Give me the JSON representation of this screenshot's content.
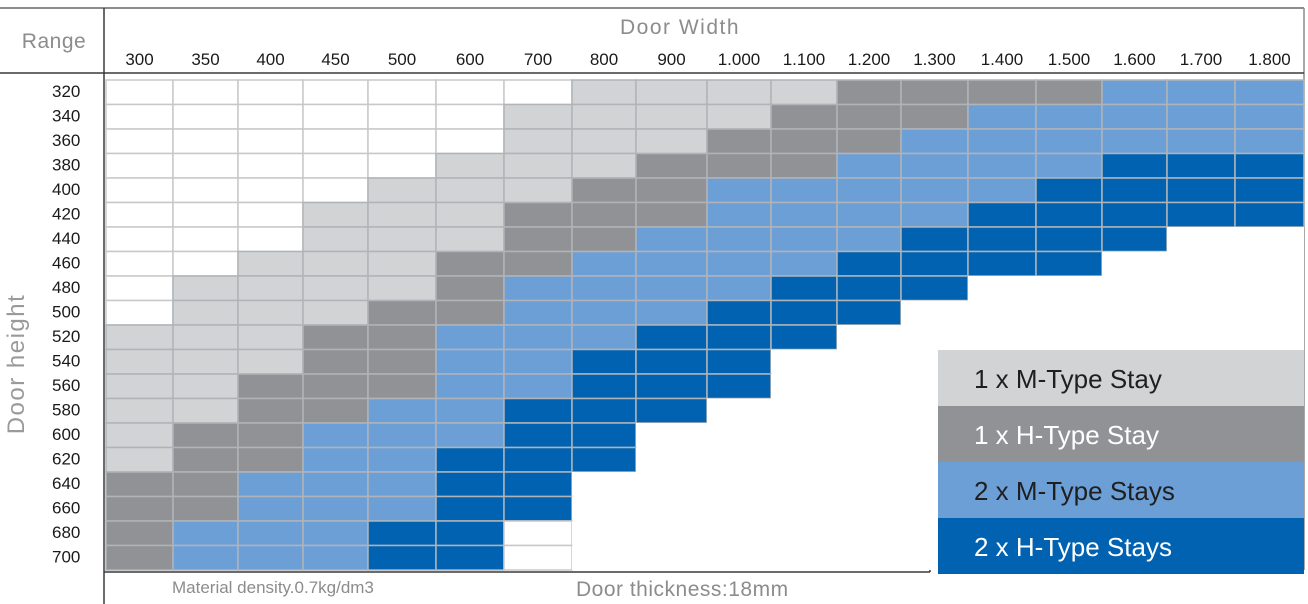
{
  "header": {
    "range_label": "Range",
    "x_title": "Door Width",
    "y_title": "Door height"
  },
  "footer": {
    "density": "Material density.0.7kg/dm3",
    "thickness": "Door  thickness:18mm"
  },
  "colors": {
    "frame": "#8c8c8c",
    "separator": "#b0b4b8",
    "empty": "#ffffff",
    "m1": "#d2d3d5",
    "h1": "#919295",
    "m2": "#6d9fd7",
    "h2": "#0062b1"
  },
  "legend": [
    {
      "key": "m1",
      "label": "1 x M-Type Stay",
      "text_color": "#1f1f1f"
    },
    {
      "key": "h1",
      "label": "1 x H-Type Stay",
      "text_color": "#ffffff"
    },
    {
      "key": "m2",
      "label": "2 x M-Type Stays",
      "text_color": "#1f1f1f"
    },
    {
      "key": "h2",
      "label": "2 x H-Type Stays",
      "text_color": "#ffffff"
    }
  ],
  "chart_data": {
    "type": "table",
    "title": "Door Width",
    "xlabel": "Door Width",
    "ylabel": "Door height",
    "columns": [
      "300",
      "350",
      "400",
      "450",
      "500",
      "600",
      "700",
      "800",
      "900",
      "1.000",
      "1.100",
      "1.200",
      "1.300",
      "1.400",
      "1.500",
      "1.600",
      "1.700",
      "1.800"
    ],
    "rows": [
      "320",
      "340",
      "360",
      "380",
      "400",
      "420",
      "440",
      "460",
      "480",
      "500",
      "520",
      "540",
      "560",
      "580",
      "600",
      "620",
      "640",
      "660",
      "680",
      "700"
    ],
    "legend_codes": {
      "0": "none",
      "1": "1 x M-Type Stay",
      "2": "1 x H-Type Stay",
      "3": "2 x M-Type Stays",
      "4": "2 x H-Type Stays"
    },
    "cells": [
      [
        0,
        0,
        0,
        0,
        0,
        0,
        0,
        1,
        1,
        1,
        1,
        2,
        2,
        2,
        2,
        3,
        3,
        3
      ],
      [
        0,
        0,
        0,
        0,
        0,
        0,
        1,
        1,
        1,
        1,
        2,
        2,
        2,
        3,
        3,
        3,
        3,
        3
      ],
      [
        0,
        0,
        0,
        0,
        0,
        0,
        1,
        1,
        1,
        2,
        2,
        2,
        3,
        3,
        3,
        3,
        3,
        3
      ],
      [
        0,
        0,
        0,
        0,
        0,
        1,
        1,
        1,
        2,
        2,
        2,
        3,
        3,
        3,
        3,
        4,
        4,
        4
      ],
      [
        0,
        0,
        0,
        0,
        1,
        1,
        1,
        2,
        2,
        3,
        3,
        3,
        3,
        3,
        4,
        4,
        4,
        4
      ],
      [
        0,
        0,
        0,
        1,
        1,
        1,
        2,
        2,
        2,
        3,
        3,
        3,
        3,
        4,
        4,
        4,
        4,
        4
      ],
      [
        0,
        0,
        0,
        1,
        1,
        1,
        2,
        2,
        3,
        3,
        3,
        3,
        4,
        4,
        4,
        4,
        0,
        0
      ],
      [
        0,
        0,
        1,
        1,
        1,
        2,
        2,
        3,
        3,
        3,
        3,
        4,
        4,
        4,
        4,
        0,
        0,
        0
      ],
      [
        0,
        1,
        1,
        1,
        1,
        2,
        3,
        3,
        3,
        3,
        4,
        4,
        4,
        0,
        0,
        0,
        0,
        0
      ],
      [
        0,
        1,
        1,
        1,
        2,
        2,
        3,
        3,
        3,
        4,
        4,
        4,
        0,
        0,
        0,
        0,
        0,
        0
      ],
      [
        1,
        1,
        1,
        2,
        2,
        3,
        3,
        3,
        4,
        4,
        4,
        0,
        0,
        0,
        0,
        0,
        0,
        0
      ],
      [
        1,
        1,
        1,
        2,
        2,
        3,
        3,
        4,
        4,
        4,
        0,
        0,
        0,
        0,
        0,
        0,
        0,
        0
      ],
      [
        1,
        1,
        2,
        2,
        2,
        3,
        3,
        4,
        4,
        4,
        0,
        0,
        0,
        0,
        0,
        0,
        0,
        0
      ],
      [
        1,
        1,
        2,
        2,
        3,
        3,
        4,
        4,
        4,
        0,
        0,
        0,
        0,
        0,
        0,
        0,
        0,
        0
      ],
      [
        1,
        2,
        2,
        3,
        3,
        3,
        4,
        4,
        0,
        0,
        0,
        0,
        0,
        0,
        0,
        0,
        0,
        0
      ],
      [
        1,
        2,
        2,
        3,
        3,
        4,
        4,
        4,
        0,
        0,
        0,
        0,
        0,
        0,
        0,
        0,
        0,
        0
      ],
      [
        2,
        2,
        3,
        3,
        3,
        4,
        4,
        0,
        0,
        0,
        0,
        0,
        0,
        0,
        0,
        0,
        0,
        0
      ],
      [
        2,
        2,
        3,
        3,
        3,
        4,
        4,
        0,
        0,
        0,
        0,
        0,
        0,
        0,
        0,
        0,
        0,
        0
      ],
      [
        2,
        3,
        3,
        3,
        4,
        4,
        0,
        0,
        0,
        0,
        0,
        0,
        0,
        0,
        0,
        0,
        0,
        0
      ],
      [
        2,
        3,
        3,
        3,
        4,
        4,
        0,
        0,
        0,
        0,
        0,
        0,
        0,
        0,
        0,
        0,
        0,
        0
      ]
    ]
  }
}
